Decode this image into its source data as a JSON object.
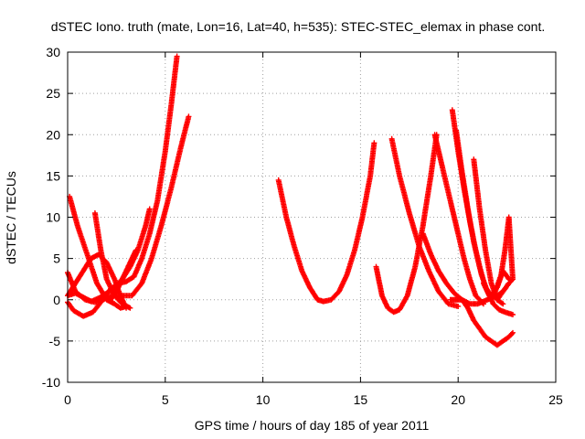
{
  "chart_data": {
    "type": "scatter",
    "title": "dSTEC Iono. truth (mate, Lon=16, Lat=40, h=535): STEC-STEC_elemax in phase cont.",
    "xlabel": "GPS time / hours of day 185 of year 2011",
    "ylabel": "dSTEC  / TECUs",
    "xlim": [
      0,
      25
    ],
    "ylim": [
      -10,
      30
    ],
    "xticks": [
      0,
      5,
      10,
      15,
      20,
      25
    ],
    "yticks": [
      -10,
      -5,
      0,
      5,
      10,
      15,
      20,
      25,
      30
    ],
    "grid": true,
    "legend": "none",
    "marker": "plus",
    "color": "#ff0000",
    "series": [
      {
        "x": [
          0.0,
          0.3,
          0.8,
          1.3,
          1.8,
          2.2,
          2.6,
          3.0,
          3.4,
          3.8,
          4.2,
          4.6,
          5.0,
          5.3,
          5.6
        ],
        "y": [
          -0.3,
          -1.3,
          -2.0,
          -1.5,
          0.0,
          1.3,
          2.0,
          2.2,
          2.8,
          5.0,
          8.0,
          12.0,
          18.0,
          23.5,
          29.5
        ]
      },
      {
        "x": [
          0.0,
          0.4,
          0.9,
          1.4,
          1.8,
          2.3,
          2.8,
          3.3,
          3.8,
          4.3,
          4.8,
          5.3,
          5.8,
          6.2
        ],
        "y": [
          3.3,
          1.0,
          0.0,
          -0.3,
          0.0,
          0.5,
          0.5,
          0.5,
          2.0,
          5.0,
          9.0,
          13.5,
          18.5,
          22.2
        ]
      },
      {
        "x": [
          0.1,
          0.5,
          1.0,
          1.5,
          2.0,
          2.4,
          2.7,
          3.0
        ],
        "y": [
          12.5,
          9.0,
          5.5,
          2.0,
          0.0,
          -0.5,
          -1.0,
          -0.8
        ]
      },
      {
        "x": [
          0.0,
          0.4,
          0.8,
          1.2,
          1.6,
          2.0,
          2.4,
          2.7,
          3.0
        ],
        "y": [
          0.5,
          2.0,
          3.5,
          5.0,
          5.5,
          4.5,
          2.5,
          0.5,
          -1.0
        ]
      },
      {
        "x": [
          1.4,
          1.7,
          2.0,
          2.4,
          2.8,
          3.2
        ],
        "y": [
          10.5,
          6.0,
          2.5,
          0.5,
          -0.5,
          -1.0
        ]
      },
      {
        "x": [
          0.0,
          0.4,
          0.8,
          1.2,
          1.6,
          2.0,
          2.4,
          2.8,
          3.2,
          3.6,
          4.0,
          4.2
        ],
        "y": [
          0.5,
          0.8,
          0.3,
          -0.2,
          0.2,
          0.8,
          1.5,
          2.5,
          4.0,
          6.0,
          9.0,
          11.0
        ]
      },
      {
        "x": [
          2.2,
          2.6,
          3.0,
          3.3,
          3.5
        ],
        "y": [
          0.0,
          1.5,
          3.5,
          5.0,
          6.0
        ]
      },
      {
        "x": [
          10.8,
          11.2,
          11.6,
          12.0,
          12.4,
          12.8,
          13.1,
          13.5,
          13.9,
          14.3,
          14.7,
          15.1,
          15.5,
          15.7
        ],
        "y": [
          14.5,
          10.0,
          6.5,
          3.5,
          1.5,
          0.0,
          -0.2,
          0.0,
          1.0,
          3.0,
          6.0,
          10.0,
          15.0,
          19.0
        ]
      },
      {
        "x": [
          15.8,
          16.1,
          16.4,
          16.7,
          17.0,
          17.4,
          17.8,
          18.2,
          18.6,
          18.9
        ],
        "y": [
          4.0,
          0.5,
          -1.0,
          -1.5,
          -1.2,
          0.5,
          4.0,
          9.0,
          15.0,
          20.0
        ]
      },
      {
        "x": [
          16.6,
          17.0,
          17.5,
          18.0,
          18.5,
          19.0,
          19.5,
          20.0
        ],
        "y": [
          19.5,
          15.0,
          10.5,
          6.5,
          3.5,
          1.0,
          -0.5,
          -0.8
        ]
      },
      {
        "x": [
          18.2,
          18.6,
          19.0,
          19.4,
          19.8,
          20.2,
          20.6,
          21.0,
          21.5,
          22.0,
          22.3,
          22.6
        ],
        "y": [
          8.0,
          5.5,
          3.5,
          2.0,
          0.8,
          0.0,
          -0.5,
          -0.5,
          0.0,
          0.5,
          1.0,
          2.0
        ]
      },
      {
        "x": [
          19.6,
          19.9,
          20.2,
          20.5,
          20.8,
          21.1,
          21.4,
          21.7,
          22.0,
          22.3,
          22.6,
          22.8
        ],
        "y": [
          0.0,
          0.0,
          0.0,
          -1.0,
          -2.5,
          -3.5,
          -4.5,
          -5.0,
          -5.5,
          -5.0,
          -4.5,
          -4.0
        ]
      },
      {
        "x": [
          18.8,
          19.1,
          19.4,
          19.7,
          20.0,
          20.3,
          20.6,
          20.9,
          21.3
        ],
        "y": [
          20.0,
          17.0,
          14.0,
          11.0,
          8.0,
          5.0,
          2.5,
          0.5,
          -0.5
        ]
      },
      {
        "x": [
          19.7,
          20.0,
          20.3,
          20.6,
          20.9,
          21.2,
          21.5,
          21.8,
          22.1,
          22.4,
          22.8
        ],
        "y": [
          23.0,
          18.0,
          13.5,
          9.5,
          6.0,
          3.0,
          1.0,
          -0.5,
          -1.2,
          -1.5,
          -1.8
        ]
      },
      {
        "x": [
          19.9,
          20.2,
          20.5,
          20.8,
          21.1,
          21.4,
          21.7,
          22.0,
          22.3,
          22.6
        ],
        "y": [
          20.5,
          15.5,
          11.0,
          7.0,
          4.0,
          1.5,
          0.5,
          1.5,
          3.5,
          2.5
        ]
      },
      {
        "x": [
          20.8,
          21.1,
          21.4,
          21.7,
          22.0,
          22.3
        ],
        "y": [
          17.0,
          11.0,
          6.0,
          2.0,
          0.0,
          -0.5
        ]
      },
      {
        "x": [
          21.3,
          21.6,
          21.9,
          22.2,
          22.4,
          22.6,
          22.8
        ],
        "y": [
          2.0,
          0.5,
          1.0,
          3.0,
          6.0,
          10.0,
          2.5
        ]
      },
      {
        "x": [
          22.0,
          22.3,
          22.6,
          22.8
        ],
        "y": [
          0.0,
          1.0,
          2.0,
          2.5
        ]
      }
    ]
  }
}
